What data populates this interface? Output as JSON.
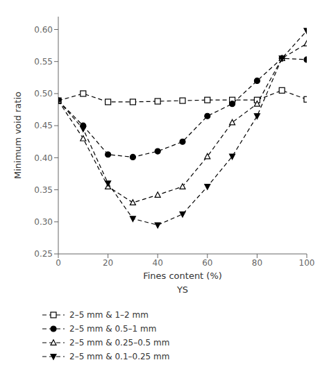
{
  "chart_data": {
    "type": "line",
    "xlabel": "Fines content (%)",
    "ylabel": "Minimum void ratio",
    "annotations": [
      "YS"
    ],
    "x": [
      0,
      10,
      20,
      30,
      40,
      50,
      60,
      70,
      80,
      90,
      100
    ],
    "series": [
      {
        "name": "2–5 mm & 1–2 mm",
        "values": [
          0.489,
          0.5,
          0.487,
          0.487,
          0.488,
          0.489,
          0.49,
          0.49,
          0.49,
          0.505,
          0.491
        ],
        "color": "black",
        "marker": "open_square",
        "line_style": "dashed"
      },
      {
        "name": "2–5 mm & 0.5–1 mm",
        "values": [
          0.489,
          0.45,
          0.405,
          0.401,
          0.41,
          0.425,
          0.465,
          0.484,
          0.52,
          0.555,
          0.553
        ],
        "color": "black",
        "marker": "filled_circle",
        "line_style": "dashed"
      },
      {
        "name": "2–5 mm & 0.25–0.5 mm",
        "values": [
          0.489,
          0.43,
          0.355,
          0.33,
          0.342,
          0.355,
          0.402,
          0.455,
          0.484,
          0.555,
          0.578
        ],
        "color": "black",
        "marker": "open_triangle_up",
        "line_style": "dashed"
      },
      {
        "name": "2–5 mm & 0.1–0.25 mm",
        "values": [
          0.489,
          0.445,
          0.36,
          0.305,
          0.295,
          0.312,
          0.355,
          0.402,
          0.465,
          0.555,
          0.598
        ],
        "color": "black",
        "marker": "filled_triangle_down",
        "line_style": "dashed"
      }
    ],
    "xlim": [
      0,
      100
    ],
    "ylim": [
      0.25,
      0.62
    ],
    "xticks": [
      0,
      20,
      40,
      60,
      80,
      100
    ],
    "yticks": [
      0.25,
      {
        "value": 0.3,
        "label": "0.30"
      },
      0.35,
      {
        "value": 0.4,
        "label": "0.40"
      },
      0.45,
      {
        "value": 0.5,
        "label": "0.50"
      },
      0.55,
      {
        "value": 0.6,
        "label": "0.60"
      }
    ],
    "grid": false,
    "legend": "bottom"
  }
}
